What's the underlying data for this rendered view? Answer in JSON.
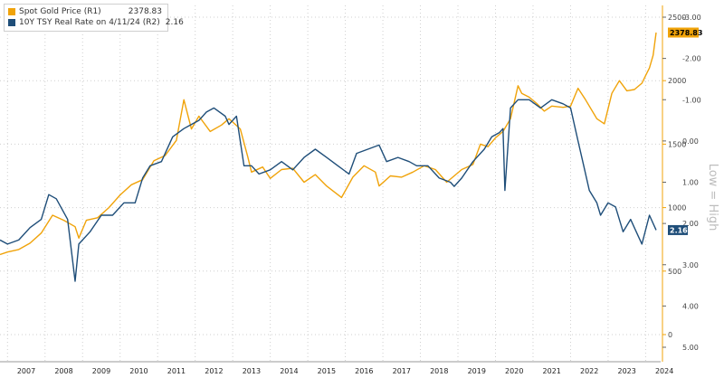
{
  "chart_data": {
    "type": "line",
    "title": "",
    "legend_position": "top-left",
    "grid": true,
    "x_ticks": [
      "2007",
      "2008",
      "2009",
      "2010",
      "2011",
      "2012",
      "2013",
      "2014",
      "2015",
      "2016",
      "2017",
      "2018",
      "2019",
      "2020",
      "2021",
      "2022",
      "2023",
      "2024"
    ],
    "xlim": [
      2006.8,
      2024.4
    ],
    "axis_right": {
      "ticks": [
        "2500",
        "2000",
        "1500",
        "1000",
        "500",
        "0"
      ],
      "ylim": [
        0,
        2500
      ],
      "color": "#f0a30a"
    },
    "axis_right2": {
      "ticks": [
        "-3.00",
        "-2.00",
        "-1.00",
        "0.00",
        "1.00",
        "2.00",
        "3.00",
        "4.00",
        "5.00"
      ],
      "ylim": [
        -3,
        5
      ],
      "inverted": true,
      "color": "#444444",
      "label": "Low = High"
    },
    "series": [
      {
        "name": "Spot Gold Price (R1)",
        "value_label": "2378.83",
        "color": "#f0a30a",
        "axis": "right",
        "x": [
          2006.8,
          2007.0,
          2007.3,
          2007.6,
          2007.9,
          2008.2,
          2008.5,
          2008.8,
          2008.9,
          2009.1,
          2009.4,
          2009.7,
          2010.0,
          2010.3,
          2010.6,
          2010.9,
          2011.2,
          2011.5,
          2011.7,
          2011.9,
          2012.1,
          2012.4,
          2012.7,
          2012.9,
          2013.2,
          2013.4,
          2013.5,
          2013.8,
          2014.0,
          2014.3,
          2014.6,
          2014.9,
          2015.2,
          2015.5,
          2015.9,
          2016.2,
          2016.5,
          2016.8,
          2016.9,
          2017.2,
          2017.5,
          2017.8,
          2018.1,
          2018.4,
          2018.7,
          2018.9,
          2019.1,
          2019.4,
          2019.6,
          2019.8,
          2020.0,
          2020.2,
          2020.4,
          2020.6,
          2020.7,
          2020.9,
          2021.1,
          2021.3,
          2021.5,
          2021.8,
          2022.0,
          2022.2,
          2022.4,
          2022.7,
          2022.9,
          2023.1,
          2023.3,
          2023.5,
          2023.7,
          2023.9,
          2024.0,
          2024.1,
          2024.2,
          2024.28
        ],
        "y": [
          630,
          650,
          670,
          720,
          800,
          940,
          900,
          850,
          760,
          900,
          920,
          1000,
          1100,
          1180,
          1220,
          1370,
          1410,
          1530,
          1850,
          1620,
          1720,
          1600,
          1650,
          1700,
          1620,
          1400,
          1280,
          1320,
          1230,
          1300,
          1310,
          1200,
          1260,
          1170,
          1080,
          1240,
          1330,
          1280,
          1170,
          1250,
          1240,
          1280,
          1330,
          1300,
          1200,
          1250,
          1300,
          1340,
          1500,
          1480,
          1550,
          1600,
          1700,
          1960,
          1900,
          1870,
          1820,
          1760,
          1800,
          1790,
          1800,
          1940,
          1850,
          1700,
          1660,
          1900,
          2000,
          1920,
          1930,
          1980,
          2040,
          2100,
          2200,
          2378.83
        ]
      },
      {
        "name": "10Y TSY Real Rate on 4/11/24 (R2)",
        "value_label": "2.16",
        "color": "#1f4e79",
        "axis": "right2",
        "x": [
          2006.8,
          2007.0,
          2007.3,
          2007.6,
          2007.9,
          2008.1,
          2008.3,
          2008.6,
          2008.8,
          2008.9,
          2009.2,
          2009.5,
          2009.8,
          2010.1,
          2010.4,
          2010.6,
          2010.8,
          2011.1,
          2011.4,
          2011.7,
          2011.9,
          2012.1,
          2012.3,
          2012.5,
          2012.8,
          2012.9,
          2013.1,
          2013.3,
          2013.5,
          2013.7,
          2014.0,
          2014.3,
          2014.6,
          2014.9,
          2015.2,
          2015.5,
          2015.8,
          2016.1,
          2016.3,
          2016.6,
          2016.9,
          2017.1,
          2017.4,
          2017.7,
          2017.9,
          2018.2,
          2018.5,
          2018.8,
          2018.9,
          2019.1,
          2019.4,
          2019.7,
          2019.9,
          2020.1,
          2020.2,
          2020.25,
          2020.4,
          2020.6,
          2020.9,
          2021.2,
          2021.5,
          2021.8,
          2022.0,
          2022.2,
          2022.35,
          2022.5,
          2022.7,
          2022.8,
          2023.0,
          2023.2,
          2023.4,
          2023.6,
          2023.8,
          2023.9,
          2024.1,
          2024.28
        ],
        "y": [
          2.4,
          2.5,
          2.4,
          2.1,
          1.9,
          1.3,
          1.4,
          1.9,
          3.4,
          2.5,
          2.2,
          1.8,
          1.8,
          1.5,
          1.5,
          0.9,
          0.6,
          0.5,
          -0.1,
          -0.3,
          -0.4,
          -0.5,
          -0.7,
          -0.8,
          -0.6,
          -0.4,
          -0.6,
          0.6,
          0.6,
          0.8,
          0.7,
          0.5,
          0.7,
          0.4,
          0.2,
          0.4,
          0.6,
          0.8,
          0.3,
          0.2,
          0.1,
          0.5,
          0.4,
          0.5,
          0.6,
          0.6,
          0.9,
          1.0,
          1.1,
          0.9,
          0.5,
          0.2,
          -0.1,
          -0.2,
          -0.3,
          1.2,
          -0.8,
          -1.0,
          -1.0,
          -0.8,
          -1.0,
          -0.9,
          -0.8,
          0.0,
          0.6,
          1.2,
          1.5,
          1.8,
          1.5,
          1.6,
          2.2,
          1.9,
          2.3,
          2.5,
          1.8,
          2.16
        ]
      }
    ]
  }
}
